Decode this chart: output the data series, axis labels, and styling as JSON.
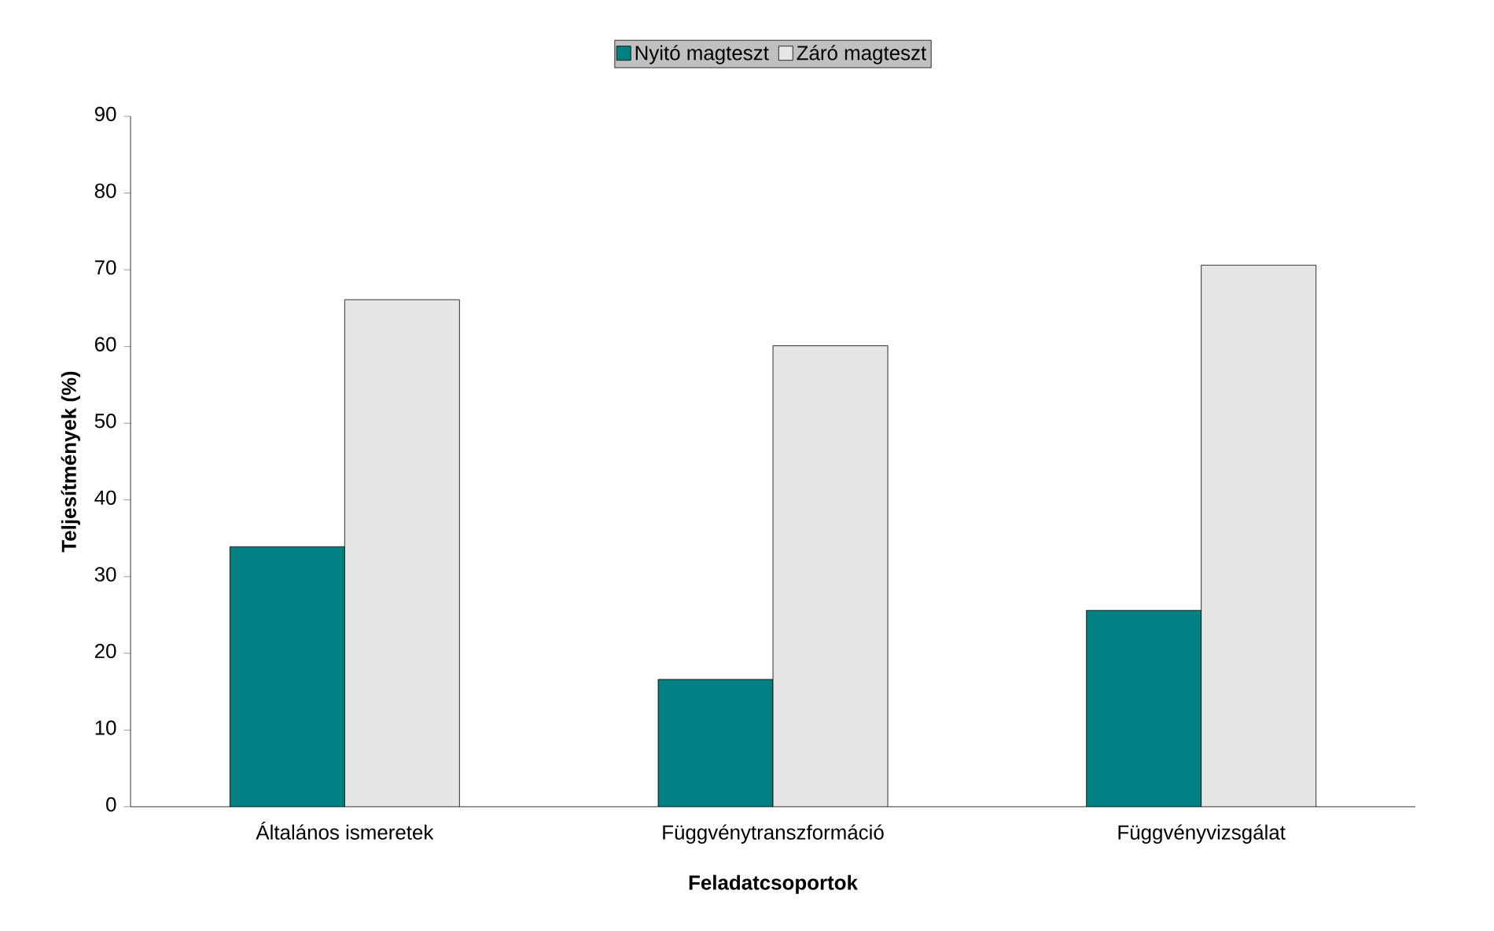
{
  "chart_data": {
    "type": "bar",
    "xlabel": "Feladatcsoportok",
    "ylabel": "Teljesítmények (%)",
    "categories": [
      "Általános ismeretek",
      "Függvénytranszformáció",
      "Függvényvizsgálat"
    ],
    "series": [
      {
        "name": "Nyitó magteszt",
        "color": "#008080",
        "values": [
          33.9,
          16.6,
          25.6
        ]
      },
      {
        "name": "Záró magteszt",
        "color": "#e6e6e6",
        "values": [
          66.1,
          60.1,
          70.6
        ]
      }
    ],
    "ylim": [
      0,
      90
    ],
    "yticks": [
      0,
      10,
      20,
      30,
      40,
      50,
      60,
      70,
      80,
      90
    ],
    "grid": false,
    "legend": "top"
  }
}
